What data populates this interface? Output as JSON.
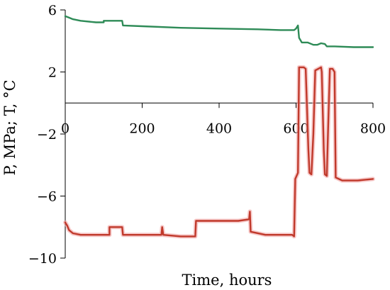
{
  "chart_data": {
    "type": "line",
    "xlabel": "Time, hours",
    "ylabel": "P, MPa; T, °C",
    "xlim": [
      0,
      800
    ],
    "ylim": [
      -10,
      6
    ],
    "x_ticks": [
      0,
      200,
      400,
      600,
      800
    ],
    "x_tick_labels": [
      "0",
      "200",
      "400",
      "600",
      "800"
    ],
    "y_ticks": [
      6,
      2,
      -2,
      -6,
      -10
    ],
    "y_tick_labels": [
      "6",
      "2",
      "−2",
      "−6",
      "−10"
    ],
    "grid": false,
    "legend": "none",
    "series": [
      {
        "color": "#2e8b57",
        "points": [
          [
            0,
            5.6
          ],
          [
            10,
            5.5
          ],
          [
            20,
            5.4
          ],
          [
            40,
            5.3
          ],
          [
            80,
            5.2
          ],
          [
            100,
            5.2
          ],
          [
            100,
            5.3
          ],
          [
            148,
            5.3
          ],
          [
            150,
            5.0
          ],
          [
            200,
            4.95
          ],
          [
            300,
            4.85
          ],
          [
            400,
            4.8
          ],
          [
            500,
            4.75
          ],
          [
            560,
            4.7
          ],
          [
            595,
            4.7
          ],
          [
            600,
            4.8
          ],
          [
            605,
            5.0
          ],
          [
            608,
            4.2
          ],
          [
            615,
            3.9
          ],
          [
            630,
            3.9
          ],
          [
            645,
            3.75
          ],
          [
            655,
            3.75
          ],
          [
            665,
            3.85
          ],
          [
            675,
            3.8
          ],
          [
            680,
            3.65
          ],
          [
            700,
            3.65
          ],
          [
            750,
            3.6
          ],
          [
            800,
            3.6
          ]
        ]
      },
      {
        "color": "#c0392b",
        "points": [
          [
            0,
            -7.7
          ],
          [
            5,
            -7.9
          ],
          [
            10,
            -8.2
          ],
          [
            20,
            -8.4
          ],
          [
            40,
            -8.5
          ],
          [
            100,
            -8.5
          ],
          [
            115,
            -8.5
          ],
          [
            115,
            -8.0
          ],
          [
            148,
            -8.0
          ],
          [
            150,
            -8.5
          ],
          [
            200,
            -8.5
          ],
          [
            250,
            -8.5
          ],
          [
            252,
            -8.0
          ],
          [
            255,
            -8.5
          ],
          [
            300,
            -8.6
          ],
          [
            338,
            -8.6
          ],
          [
            340,
            -7.6
          ],
          [
            400,
            -7.6
          ],
          [
            450,
            -7.6
          ],
          [
            478,
            -7.5
          ],
          [
            480,
            -7.0
          ],
          [
            482,
            -8.3
          ],
          [
            520,
            -8.5
          ],
          [
            590,
            -8.5
          ],
          [
            595,
            -8.6
          ],
          [
            598,
            -4.9
          ],
          [
            605,
            -4.5
          ],
          [
            608,
            2.3
          ],
          [
            620,
            2.3
          ],
          [
            625,
            2.2
          ],
          [
            632,
            -3.0
          ],
          [
            635,
            -4.5
          ],
          [
            640,
            -4.6
          ],
          [
            645,
            -2.0
          ],
          [
            650,
            2.1
          ],
          [
            665,
            2.3
          ],
          [
            667,
            2.0
          ],
          [
            672,
            -3.0
          ],
          [
            675,
            -4.6
          ],
          [
            680,
            -4.7
          ],
          [
            683,
            -2.0
          ],
          [
            688,
            2.2
          ],
          [
            695,
            2.2
          ],
          [
            700,
            2.0
          ],
          [
            703,
            -4.8
          ],
          [
            720,
            -5.0
          ],
          [
            760,
            -5.0
          ],
          [
            800,
            -4.9
          ]
        ]
      }
    ]
  }
}
